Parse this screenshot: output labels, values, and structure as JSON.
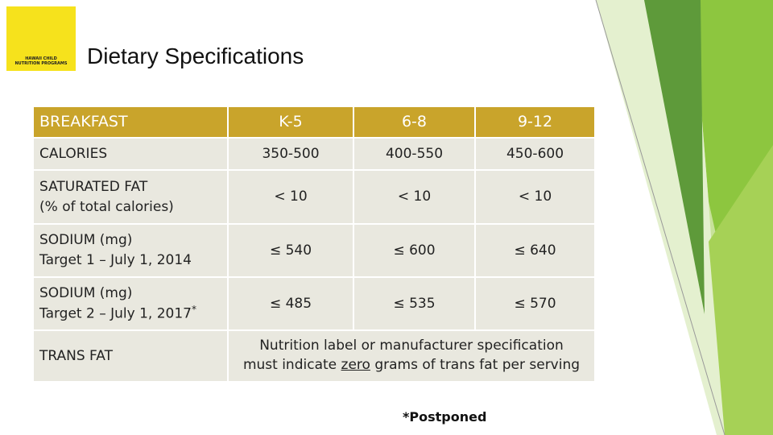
{
  "header": {
    "logo_text": [
      "HAWAII CHILD",
      "NUTRITION PROGRAMS"
    ],
    "title": "Dietary Specifications"
  },
  "table": {
    "columns": [
      "BREAKFAST",
      "K-5",
      "6-8",
      "9-12"
    ],
    "rows": [
      {
        "label": [
          "CALORIES"
        ],
        "values": [
          "350-500",
          "400-550",
          "450-600"
        ]
      },
      {
        "label": [
          "SATURATED FAT",
          "(% of total calories)"
        ],
        "values": [
          "< 10",
          "< 10",
          "< 10"
        ]
      },
      {
        "label": [
          "SODIUM (mg)",
          "Target 1 – July 1, 2014"
        ],
        "values": [
          "≤ 540",
          "≤ 600",
          "≤ 640"
        ]
      },
      {
        "label": [
          "SODIUM (mg)",
          "Target 2 – July 1, 2017"
        ],
        "label_mark": "*",
        "values": [
          "≤ 485",
          "≤ 535",
          "≤ 570"
        ]
      },
      {
        "label": [
          "TRANS FAT"
        ],
        "note": {
          "line1": "Nutrition label or manufacturer specification",
          "line2_before": "must indicate ",
          "line2_emphasis": "zero",
          "line2_after": " grams of trans fat per serving"
        }
      }
    ]
  },
  "footnote": "*Postponed"
}
